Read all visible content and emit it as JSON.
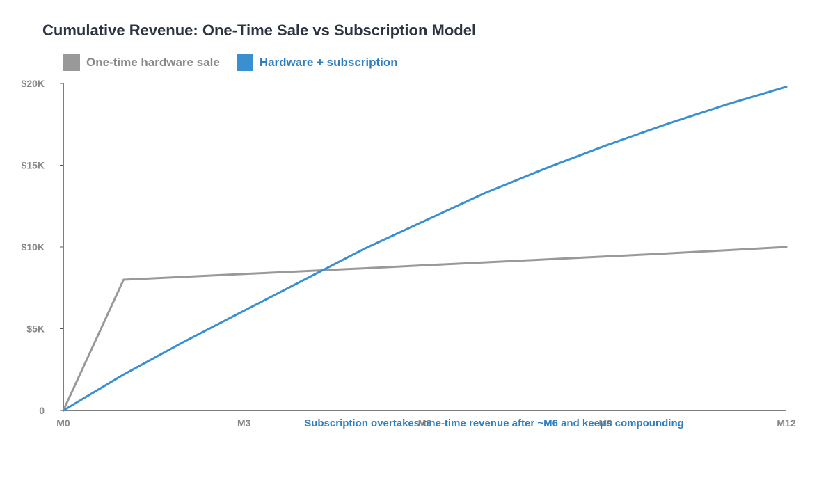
{
  "chart_data": {
    "type": "line",
    "title": "Cumulative Revenue: One-Time Sale vs Subscription Model",
    "xlabel": "",
    "ylabel": "",
    "x": [
      0,
      1,
      2,
      3,
      4,
      5,
      6,
      7,
      8,
      9,
      10,
      11,
      12
    ],
    "x_ticks": [
      {
        "value": 0,
        "label": "M0"
      },
      {
        "value": 3,
        "label": "M3"
      },
      {
        "value": 6,
        "label": "M6"
      },
      {
        "value": 9,
        "label": "M9"
      },
      {
        "value": 12,
        "label": "M12"
      }
    ],
    "y_ticks": [
      {
        "value": 0,
        "label": "0"
      },
      {
        "value": 5000,
        "label": "$5K"
      },
      {
        "value": 10000,
        "label": "$10K"
      },
      {
        "value": 15000,
        "label": "$15K"
      },
      {
        "value": 20000,
        "label": "$20K"
      }
    ],
    "xlim": [
      0,
      12
    ],
    "ylim": [
      0,
      20000
    ],
    "grid": false,
    "legend_position": "top-left",
    "series": [
      {
        "name": "One-time hardware sale",
        "color": "#999999",
        "values": [
          0,
          8000,
          8175,
          8350,
          8525,
          8700,
          8880,
          9060,
          9240,
          9420,
          9600,
          9800,
          10000
        ]
      },
      {
        "name": "Hardware + subscription",
        "color": "#3a8fd0",
        "values": [
          0,
          2200,
          4200,
          6100,
          8000,
          9900,
          11600,
          13300,
          14800,
          16200,
          17500,
          18700,
          19800
        ]
      }
    ],
    "annotations": [
      {
        "text": "Subscription overtakes one-time revenue after ~M6 and keeps compounding",
        "x": 6,
        "color": "#2f7fbf"
      }
    ]
  },
  "legend_colors": {
    "one_time": "#999999",
    "subscription": "#3a8fd0",
    "subscription_label": "#2f7fbf"
  }
}
